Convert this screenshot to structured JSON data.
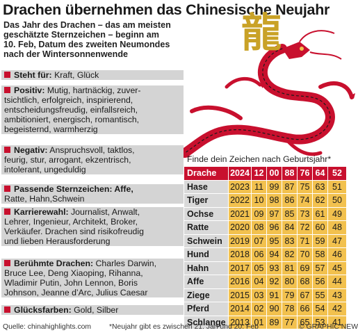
{
  "title": "Drachen übernehmen das Chinesische Neujahr",
  "intro": [
    "Das Jahr des Drachen – das am meisten",
    "geschätzte Sternzeichen – beginn am",
    "10. Feb, Datum des zweiten Neumondes",
    "nach der Wintersonnenwende"
  ],
  "glyph": "龍",
  "sections": [
    {
      "heading": "Steht für:",
      "lines": [
        " Kraft, Glück"
      ]
    },
    {
      "heading": "Positiv:",
      "lines": [
        " Mutig, hartnäckig, zuver-",
        "tsichtlich, erfolgreich, inspirierend,",
        "entscheidungsfreudig, einfallsreich,",
        "ambitioniert, energisch, romantisch,",
        "begeisternd, warmherzig"
      ]
    },
    {
      "heading": "Negativ:",
      "lines": [
        " Anspruchsvoll, taktlos,",
        "feurig, stur, arrogant, ekzentrisch,",
        "intolerant, ungeduldig"
      ]
    },
    {
      "heading": "Passende Sternzeichen: Affe,",
      "lines": [
        "Ratte, Hahn,Schwein"
      ]
    },
    {
      "heading": "Karrierewahl:",
      "lines": [
        " Journalist, Anwalt,",
        "Lehrer, Ingenieur, Architekt, Broker,",
        "Verkäufer. Drachen sind risikofreudig",
        "und lieben Herausforderung"
      ]
    },
    {
      "heading": "Berühmte Drachen:",
      "lines": [
        " Charles Darwin,",
        "Bruce Lee, Deng Xiaoping, Rihanna,",
        "Wladimir Putin, John Lennon, Boris",
        "Johnson, Jeanne d’Arc, Julius Caesar"
      ]
    },
    {
      "heading": "Glücksfarben:",
      "lines": [
        " Gold, Silber"
      ]
    }
  ],
  "table": {
    "title": "Finde dein Zeichen nach Geburtsjahr*",
    "header": [
      "Drache",
      "2024",
      "12",
      "00",
      "88",
      "76",
      "64",
      "52"
    ],
    "rows": [
      [
        "Hase",
        "2023",
        "11",
        "99",
        "87",
        "75",
        "63",
        "51"
      ],
      [
        "Tiger",
        "2022",
        "10",
        "98",
        "86",
        "74",
        "62",
        "50"
      ],
      [
        "Ochse",
        "2021",
        "09",
        "97",
        "85",
        "73",
        "61",
        "49"
      ],
      [
        "Ratte",
        "2020",
        "08",
        "96",
        "84",
        "72",
        "60",
        "48"
      ],
      [
        "Schwein",
        "2019",
        "07",
        "95",
        "83",
        "71",
        "59",
        "47"
      ],
      [
        "Hund",
        "2018",
        "06",
        "94",
        "82",
        "70",
        "58",
        "46"
      ],
      [
        "Hahn",
        "2017",
        "05",
        "93",
        "81",
        "69",
        "57",
        "45"
      ],
      [
        "Affe",
        "2016",
        "04",
        "92",
        "80",
        "68",
        "56",
        "44"
      ],
      [
        "Ziege",
        "2015",
        "03",
        "91",
        "79",
        "67",
        "55",
        "43"
      ],
      [
        "Pferd",
        "2014",
        "02",
        "90",
        "78",
        "66",
        "54",
        "42"
      ],
      [
        "Schlange",
        "2013",
        "01",
        "89",
        "77",
        "65",
        "53",
        "41"
      ]
    ]
  },
  "footer": {
    "source": "Quelle: chinahighlights.com",
    "note": "*Neujahr gibt es zwischen 21. Jan und  20. Feb",
    "credit": "© GRAPHIC NEWS"
  },
  "colors": {
    "accent": "#c8102e",
    "gold": "#f2c14e",
    "panel": "#d4d4d4"
  }
}
